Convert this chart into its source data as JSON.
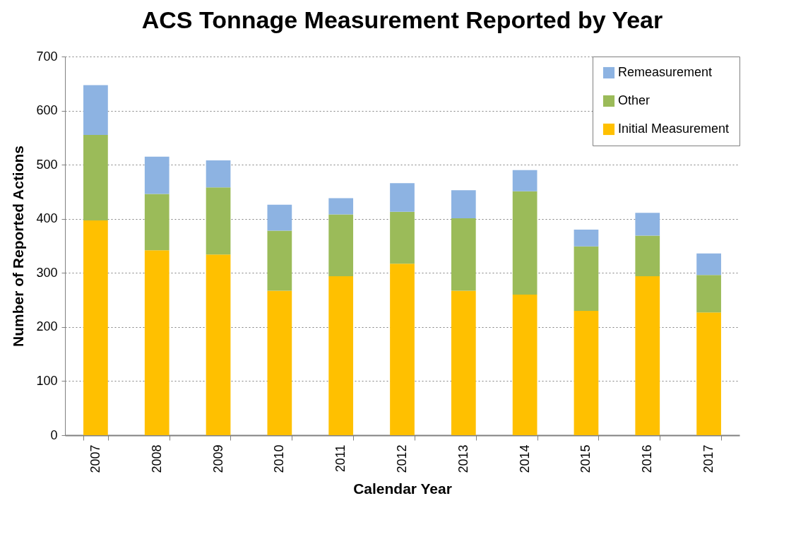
{
  "chart_data": {
    "type": "bar",
    "title": "ACS Tonnage Measurement Reported by Year",
    "xlabel": "Calendar Year",
    "ylabel": "Number of Reported Actions",
    "categories": [
      "2007",
      "2008",
      "2009",
      "2010",
      "2011",
      "2012",
      "2013",
      "2014",
      "2015",
      "2016",
      "2017"
    ],
    "series": [
      {
        "name": "Initial Measurement",
        "color": "#ffc000",
        "values": [
          397,
          342,
          334,
          267,
          294,
          317,
          267,
          260,
          230,
          294,
          227
        ]
      },
      {
        "name": "Other",
        "color": "#9bbb59",
        "values": [
          158,
          104,
          124,
          111,
          114,
          96,
          134,
          191,
          119,
          75,
          69
        ]
      },
      {
        "name": "Remeasurement",
        "color": "#8db3e2",
        "values": [
          92,
          69,
          50,
          48,
          30,
          53,
          52,
          39,
          31,
          42,
          40
        ]
      }
    ],
    "stacked": true,
    "ylim": [
      0,
      700
    ],
    "yticks": [
      0,
      100,
      200,
      300,
      400,
      500,
      600,
      700
    ],
    "grid": "y",
    "legend": "top right"
  }
}
